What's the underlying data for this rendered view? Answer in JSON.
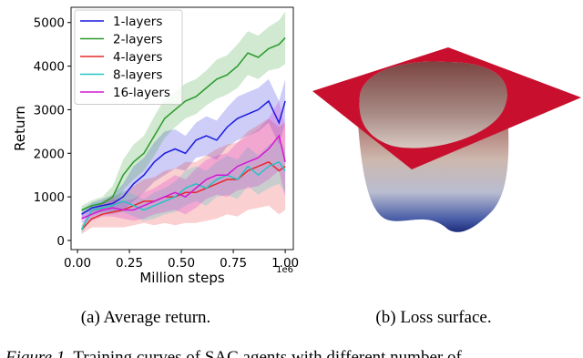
{
  "chart_data": {
    "type": "line",
    "x": [
      0.02,
      0.07,
      0.12,
      0.17,
      0.22,
      0.27,
      0.32,
      0.37,
      0.42,
      0.47,
      0.52,
      0.57,
      0.62,
      0.67,
      0.72,
      0.77,
      0.82,
      0.87,
      0.92,
      0.97,
      1.0
    ],
    "series": [
      {
        "name": "1-layers",
        "color": "#1a1ae0",
        "values": [
          600,
          750,
          800,
          850,
          1000,
          1300,
          1500,
          1800,
          2000,
          2100,
          2000,
          2300,
          2400,
          2300,
          2600,
          2800,
          2900,
          3000,
          3200,
          2700,
          3200
        ],
        "std": [
          100,
          120,
          150,
          200,
          300,
          400,
          400,
          450,
          500,
          450,
          400,
          400,
          450,
          450,
          450,
          500,
          500,
          500,
          500,
          500,
          500
        ]
      },
      {
        "name": "2-layers",
        "color": "#2a9a2a",
        "values": [
          700,
          800,
          850,
          1000,
          1500,
          1800,
          2000,
          2400,
          2800,
          3000,
          3200,
          3300,
          3500,
          3700,
          3800,
          4000,
          4300,
          4200,
          4400,
          4500,
          4650
        ],
        "std": [
          100,
          120,
          150,
          250,
          350,
          400,
          400,
          450,
          450,
          400,
          400,
          400,
          400,
          450,
          450,
          500,
          500,
          500,
          500,
          550,
          600
        ]
      },
      {
        "name": "4-layers",
        "color": "#e62828",
        "values": [
          250,
          500,
          600,
          650,
          700,
          800,
          900,
          900,
          1000,
          1000,
          1100,
          1100,
          1200,
          1300,
          1400,
          1400,
          1600,
          1700,
          1800,
          1600,
          1700
        ],
        "std": [
          100,
          200,
          300,
          350,
          400,
          450,
          500,
          550,
          600,
          650,
          700,
          700,
          750,
          800,
          800,
          850,
          900,
          950,
          1000,
          1000,
          1000
        ]
      },
      {
        "name": "8-layers",
        "color": "#22c4c4",
        "values": [
          250,
          700,
          750,
          800,
          900,
          800,
          700,
          800,
          900,
          1000,
          1200,
          1300,
          1200,
          1400,
          1500,
          1400,
          1700,
          1500,
          1700,
          1800,
          1600
        ],
        "std": [
          100,
          150,
          150,
          200,
          250,
          250,
          250,
          300,
          300,
          350,
          400,
          400,
          400,
          400,
          450,
          450,
          450,
          450,
          500,
          500,
          500
        ]
      },
      {
        "name": "16-layers",
        "color": "#d418d4",
        "values": [
          500,
          600,
          700,
          750,
          700,
          700,
          800,
          900,
          1000,
          1100,
          1000,
          1200,
          1400,
          1500,
          1500,
          1700,
          1800,
          1900,
          2100,
          2400,
          1800
        ],
        "std": [
          100,
          150,
          150,
          200,
          200,
          250,
          300,
          300,
          350,
          400,
          400,
          450,
          450,
          450,
          500,
          550,
          600,
          650,
          700,
          800,
          800
        ]
      }
    ],
    "xlabel": "Million steps",
    "ylabel": "Return",
    "x_offset_label": "1e6",
    "xlim": [
      -0.031,
      1.039
    ],
    "ylim": [
      -210,
      5350
    ],
    "xticks": [
      {
        "value": 0,
        "label": "0.00"
      },
      0.25,
      {
        "value": 0.5,
        "label": "0.50"
      },
      0.75,
      {
        "value": 1,
        "label": "1.00"
      }
    ],
    "yticks": [
      0,
      1000,
      2000,
      3000,
      4000,
      5000
    ],
    "grid": false,
    "legend": "upper left"
  },
  "subcaptions": [
    "(a) Average return.",
    "(b) Loss surface."
  ],
  "caption_label": "Figure 1.",
  "caption_text": " Training curves of SAC agents with different number of"
}
